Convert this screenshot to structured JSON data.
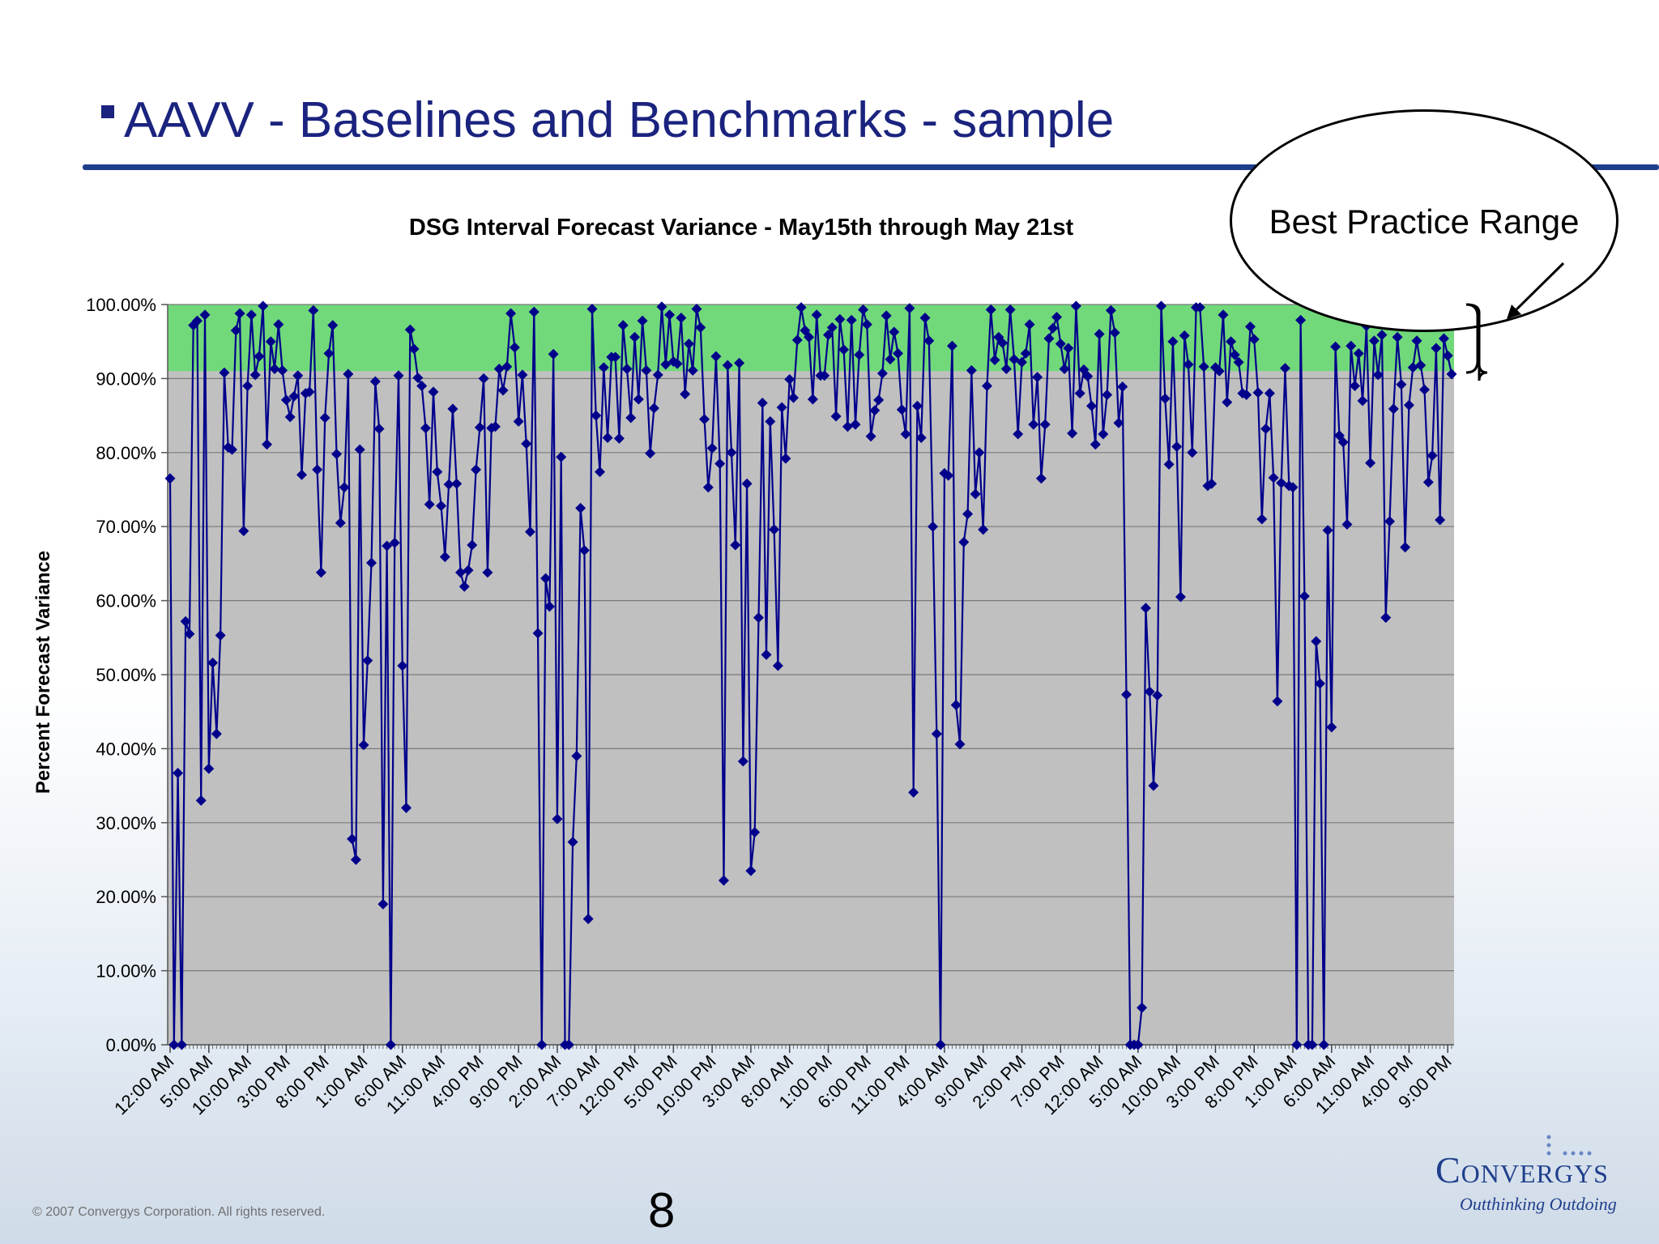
{
  "slide": {
    "title": "AAVV -  Baselines and Benchmarks - sample",
    "page_number": "8",
    "copyright": "© 2007 Convergys Corporation. All rights reserved.",
    "logo_name": "Convergys",
    "logo_tagline": "Outthinking Outdoing",
    "bullet_icon": "square-bullet-icon",
    "colors": {
      "title": "#1a237e",
      "rule": "#1f3f8c",
      "series": "#00008b",
      "band": "#71d97a",
      "plot_bg": "#c0c0c0"
    }
  },
  "legend": {
    "label": "Best Practice Range"
  },
  "chart_data": {
    "type": "line",
    "title": "DSG Interval Forecast Variance - May15th through May 21st",
    "xlabel": "",
    "ylabel": "Percent Forecast Variance",
    "ylim": [
      0,
      100
    ],
    "y_ticks": [
      "0.00%",
      "10.00%",
      "20.00%",
      "30.00%",
      "40.00%",
      "50.00%",
      "60.00%",
      "70.00%",
      "80.00%",
      "90.00%",
      "100.00%"
    ],
    "grid": true,
    "band": {
      "from": 91,
      "to": 100,
      "label": "Best Practice Range"
    },
    "x_tick_labels": [
      "12:00 AM",
      "5:00 AM",
      "10:00 AM",
      "3:00 PM",
      "8:00 PM",
      "1:00 AM",
      "6:00 AM",
      "11:00 AM",
      "4:00 PM",
      "9:00 PM",
      "2:00 AM",
      "7:00 AM",
      "12:00 PM",
      "5:00 PM",
      "10:00 PM",
      "3:00 AM",
      "8:00 AM",
      "1:00 PM",
      "6:00 PM",
      "11:00 PM",
      "4:00 AM",
      "9:00 AM",
      "2:00 PM",
      "7:00 PM",
      "12:00 AM",
      "5:00 AM",
      "10:00 AM",
      "3:00 PM",
      "8:00 PM",
      "1:00 AM",
      "6:00 AM",
      "11:00 AM",
      "4:00 PM",
      "9:00 PM"
    ],
    "points_per_tick": 10,
    "series": [
      {
        "values": [
          76.5,
          0,
          36.7,
          0,
          57.2,
          55.5,
          97.2,
          97.8,
          33,
          98.6,
          37.3,
          51.6,
          42,
          55.3,
          90.8,
          80.7,
          80.4,
          96.5,
          98.8,
          69.4,
          89,
          98.6,
          90.5,
          93,
          99.8,
          81.1,
          95,
          91.3,
          97.3,
          91.1,
          87.1,
          84.8,
          87.6,
          90.4,
          77,
          88,
          88.2,
          99.2,
          77.7,
          63.8,
          84.7,
          93.4,
          97.2,
          79.8,
          70.5,
          75.3,
          90.6,
          27.8,
          25,
          80.4,
          40.5,
          51.9,
          65.1,
          89.6,
          83.2,
          19,
          67.4,
          0,
          67.8,
          90.4,
          51.2,
          32,
          96.6,
          94,
          90.1,
          89,
          83.3,
          73,
          88.2,
          77.4,
          72.8,
          65.9,
          75.7,
          85.9,
          75.8,
          63.8,
          61.9,
          64.1,
          67.5,
          77.7,
          83.4,
          90,
          63.8,
          83.3,
          83.5,
          91.3,
          88.4,
          91.6,
          98.8,
          94.2,
          84.2,
          90.5,
          81.2,
          69.3,
          99,
          55.6,
          0,
          63,
          59.2,
          93.3,
          30.5,
          79.4,
          0,
          0,
          27.4,
          39,
          72.5,
          66.8,
          17,
          99.4,
          85,
          77.4,
          91.5,
          82,
          92.9,
          92.9,
          81.9,
          97.2,
          91.3,
          84.7,
          95.6,
          87.2,
          97.8,
          91.1,
          79.9,
          86,
          90.5,
          99.7,
          91.9,
          98.6,
          92.3,
          92,
          98.2,
          87.9,
          94.7,
          91.1,
          99.4,
          96.9,
          84.5,
          75.3,
          80.6,
          93,
          78.5,
          22.2,
          91.8,
          80,
          67.5,
          92.1,
          38.3,
          75.8,
          23.5,
          28.7,
          57.7,
          86.7,
          52.7,
          84.2,
          69.6,
          51.2,
          86.1,
          79.2,
          89.9,
          87.4,
          95.2,
          99.6,
          96.5,
          95.6,
          87.2,
          98.6,
          90.4,
          90.4,
          95.9,
          96.9,
          84.9,
          98,
          93.9,
          83.5,
          97.9,
          83.8,
          93.2,
          99.3,
          97.3,
          82.2,
          85.7,
          87.1,
          90.7,
          98.5,
          92.6,
          96.3,
          93.4,
          85.8,
          82.5,
          99.5,
          34.1,
          86.3,
          82,
          98.2,
          95.1,
          70,
          42,
          0,
          77.2,
          76.9,
          94.4,
          45.9,
          40.6,
          67.9,
          71.7,
          91.1,
          74.4,
          80,
          69.6,
          89,
          99.3,
          92.5,
          95.6,
          94.8,
          91.3,
          99.3,
          92.6,
          82.5,
          92.2,
          93.4,
          97.3,
          83.8,
          90.2,
          76.5,
          83.8,
          95.4,
          96.8,
          98.3,
          94.7,
          91.3,
          94.1,
          82.6,
          99.8,
          88,
          91.2,
          90.3,
          86.3,
          81.1,
          96,
          82.5,
          87.8,
          99.2,
          96.2,
          84,
          88.9,
          47.3,
          0,
          0,
          0,
          5,
          59,
          47.7,
          35,
          47.2,
          99.8,
          87.3,
          78.4,
          95,
          80.8,
          60.5,
          95.8,
          91.9,
          80,
          99.6,
          99.6,
          91.6,
          75.5,
          75.8,
          91.5,
          91,
          98.6,
          86.8,
          95,
          93.2,
          92.2,
          88,
          87.8,
          97,
          95.3,
          88.1,
          71,
          83.2,
          88,
          76.6,
          46.4,
          75.9,
          91.4,
          75.5,
          75.3,
          0,
          97.9,
          60.6,
          0,
          0,
          54.5,
          48.8,
          0,
          69.5,
          42.9,
          94.3,
          82.3,
          81.4,
          70.3,
          94.4,
          89,
          93.4,
          87,
          97.1,
          78.6,
          95.1,
          90.5,
          95.9,
          57.7,
          70.7,
          85.9,
          95.6,
          89.2,
          67.2,
          86.4,
          91.5,
          95.1,
          91.8,
          88.5,
          76,
          79.6,
          94.1,
          70.9,
          95.4,
          93.1,
          90.6
        ]
      }
    ]
  }
}
